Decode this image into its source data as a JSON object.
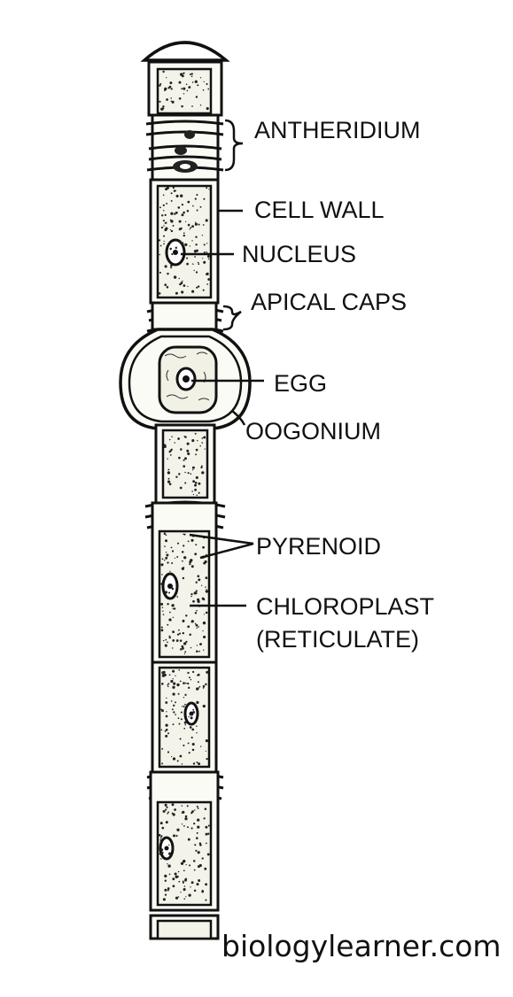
{
  "labels": {
    "antheridium": "ANTHERIDIUM",
    "cell_wall": "CELL WALL",
    "nucleus": "NUCLEUS",
    "apical_caps": "APICAL CAPS",
    "egg": "EGG",
    "oogonium": "OOGONIUM",
    "pyrenoid": "PYRENOID",
    "chloroplast": "CHLOROPLAST",
    "chloroplast_note": "(RETICULATE)"
  },
  "watermark": "biologylearner.com",
  "colors": {
    "ink": "#111111",
    "paper": "#ffffff"
  }
}
